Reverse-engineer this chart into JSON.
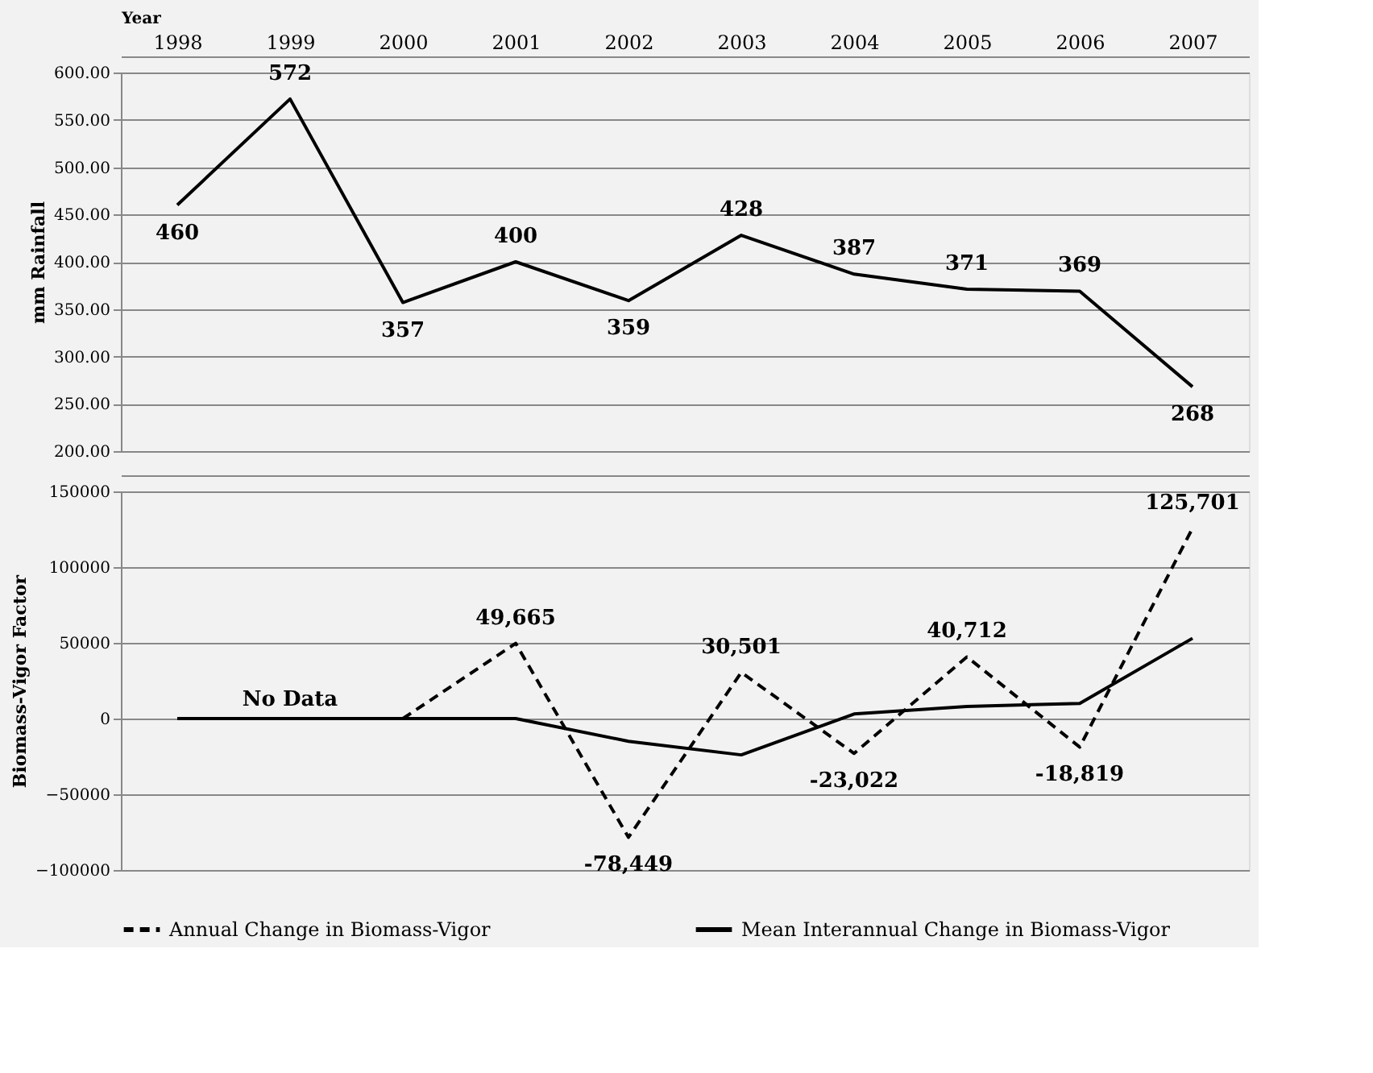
{
  "chart_data": [
    {
      "type": "line",
      "xlabel": "Year",
      "ylabel": "mm Rainfall",
      "categories": [
        "1998",
        "1999",
        "2000",
        "2001",
        "2002",
        "2003",
        "2004",
        "2005",
        "2006",
        "2007"
      ],
      "series": [
        {
          "color": "#000000",
          "line_style": "solid",
          "values": [
            460,
            572,
            357,
            400,
            359,
            428,
            387,
            371,
            369,
            268
          ]
        }
      ],
      "ylim": [
        200,
        600
      ],
      "yticks": [
        {
          "value": 200,
          "label": "200.00"
        },
        {
          "value": 250,
          "label": "250.00"
        },
        {
          "value": 300,
          "label": "300.00"
        },
        {
          "value": 350,
          "label": "350.00"
        },
        {
          "value": 400,
          "label": "400.00"
        },
        {
          "value": 450,
          "label": "450.00"
        },
        {
          "value": 500,
          "label": "500.00"
        },
        {
          "value": 550,
          "label": "550.00"
        },
        {
          "value": 600,
          "label": "600.00"
        }
      ],
      "grid": "y",
      "data_labels": true,
      "legend": false
    },
    {
      "type": "line",
      "ylabel": "Biomass-Vigor Factor",
      "categories": [
        "1998",
        "1999",
        "2000",
        "2001",
        "2002",
        "2003",
        "2004",
        "2005",
        "2006",
        "2007"
      ],
      "series": [
        {
          "name": "Annual Change in Biomass-Vigor",
          "color": "#000000",
          "line_style": "dashed",
          "values": [
            null,
            null,
            0,
            49665,
            -78449,
            30501,
            -23022,
            40712,
            -18819,
            125701
          ],
          "value_labels": [
            null,
            null,
            null,
            "49,665",
            "-78,449",
            "30,501",
            "-23,022",
            "40,712",
            "-18,819",
            "125,701"
          ]
        },
        {
          "name": "Mean Interannual Change in Biomass-Vigor",
          "color": "#000000",
          "line_style": "solid",
          "values": [
            0,
            0,
            0,
            0,
            -15000,
            -24000,
            3000,
            8000,
            10000,
            53000
          ]
        }
      ],
      "ylim": [
        -100000,
        150000
      ],
      "yticks": [
        -100000,
        -50000,
        0,
        50000,
        100000,
        150000
      ],
      "annotations": [
        {
          "text": "No Data",
          "x": "1999",
          "y": 0
        }
      ],
      "grid": "y",
      "legend": "bottom",
      "tick_labels": "y"
    }
  ]
}
